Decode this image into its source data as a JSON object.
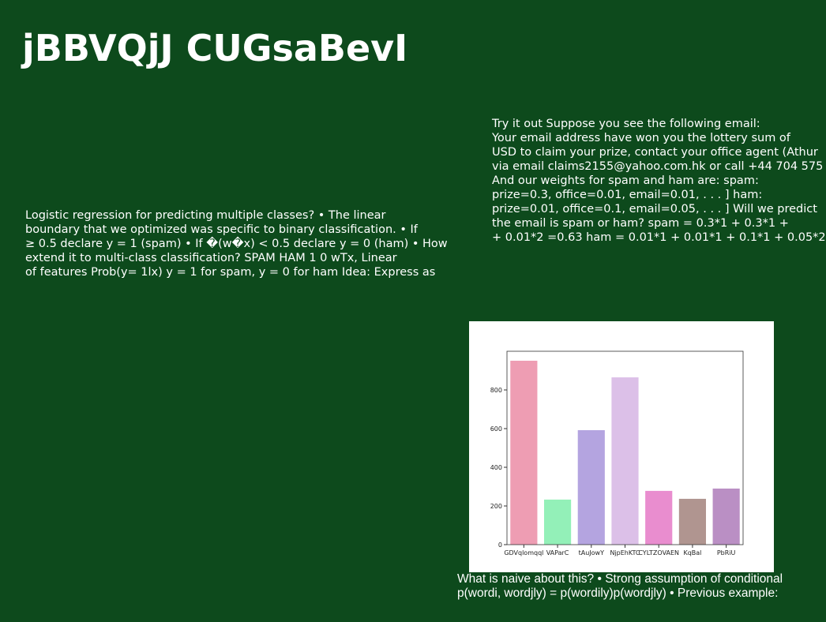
{
  "title": "jBBVQjJ CUGsaBevI",
  "left_text": [
    "Logistic regression for predicting multiple classes? • The linear",
    "boundary that we optimized was specific to binary classification. • If",
    "≥ 0.5 declare y = 1 (spam) • If �(w�x) < 0.5 declare y = 0 (ham) • How",
    "extend it to multi-class classification? SPAM HAM 1 0 wTx, Linear",
    "of features Prob(y= 1lx) y = 1 for spam, y = 0 for ham Idea: Express as"
  ],
  "right_text": [
    "Try it out Suppose you see the following email:",
    "Your email address have won you the lottery sum of",
    "USD to claim your prize, contact your office agent (Athur",
    "via email claims2155@yahoo.com.hk or call +44 704 575",
    "And our weights for spam and ham are: spam:",
    "prize=0.3, office=0.01, email=0.01, . . . ] ham:",
    "prize=0.01, office=0.1, email=0.05, . . . ] Will we predict",
    "the email is spam or ham? spam = 0.3*1 + 0.3*1 +",
    "+ 0.01*2 =0.63 ham = 0.01*1 + 0.01*1 + 0.1*1 + 0.05*2"
  ],
  "caption": [
    "What is naive about this? • Strong assumption of conditional",
    "p(wordi, wordjly) = p(wordily)p(wordjly) • Previous example:"
  ],
  "chart_data": {
    "type": "bar",
    "categories": [
      "GDVqlomqql",
      "VAParC",
      "tAuJowY",
      "NjpEhKTC",
      "CYLTZOVAEN",
      "KqBal",
      "PbRiU"
    ],
    "values": [
      951,
      233,
      592,
      865,
      278,
      237,
      290
    ],
    "colors": [
      "#ee9db3",
      "#93f0b8",
      "#b4a4e0",
      "#dcc0e8",
      "#e98dcf",
      "#b09590",
      "#ba8fc4"
    ],
    "ylim": [
      0,
      1000
    ],
    "yticks": [
      0,
      200,
      400,
      600,
      800
    ]
  }
}
